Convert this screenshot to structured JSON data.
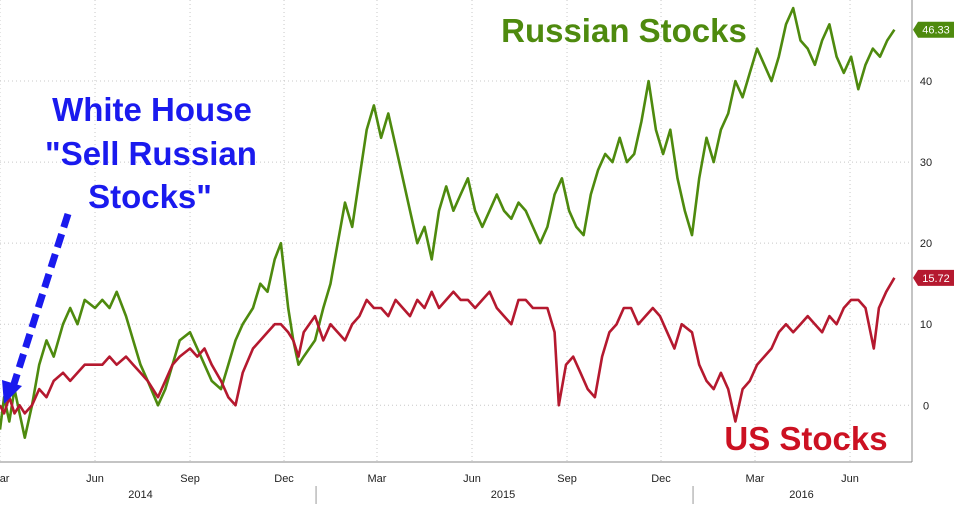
{
  "chart_data": {
    "type": "line",
    "title": "",
    "xlabel": "",
    "ylabel": "",
    "ylim": [
      -7,
      50
    ],
    "x_range": [
      "2014-03-01",
      "2016-07-31"
    ],
    "grid": true,
    "y_ticks": [
      0,
      10,
      20,
      30,
      40
    ],
    "x_ticks": [
      {
        "date": "2014-03-01",
        "label": "Mar"
      },
      {
        "date": "2014-06-01",
        "label": "Jun"
      },
      {
        "date": "2014-09-01",
        "label": "Sep"
      },
      {
        "date": "2014-12-01",
        "label": "Dec"
      },
      {
        "date": "2015-03-01",
        "label": "Mar"
      },
      {
        "date": "2015-06-01",
        "label": "Jun"
      },
      {
        "date": "2015-09-01",
        "label": "Sep"
      },
      {
        "date": "2015-12-01",
        "label": "Dec"
      },
      {
        "date": "2016-03-01",
        "label": "Mar"
      },
      {
        "date": "2016-06-01",
        "label": "Jun"
      }
    ],
    "years": [
      {
        "date": "2014-07-15",
        "label": "2014"
      },
      {
        "date": "2015-07-01",
        "label": "2015"
      },
      {
        "date": "2016-04-15",
        "label": "2016"
      }
    ],
    "year_separators": [
      "2015-01-01",
      "2016-01-01"
    ],
    "series": [
      {
        "name": "Russian Stocks",
        "color": "#4e8a0e",
        "last_value": "46.33",
        "points": [
          [
            "2014-03-01",
            -3
          ],
          [
            "2014-03-05",
            1
          ],
          [
            "2014-03-10",
            -2
          ],
          [
            "2014-03-15",
            2
          ],
          [
            "2014-03-20",
            -1
          ],
          [
            "2014-03-25",
            -4
          ],
          [
            "2014-04-01",
            0
          ],
          [
            "2014-04-08",
            5
          ],
          [
            "2014-04-15",
            8
          ],
          [
            "2014-04-22",
            6
          ],
          [
            "2014-05-01",
            10
          ],
          [
            "2014-05-08",
            12
          ],
          [
            "2014-05-15",
            10
          ],
          [
            "2014-05-22",
            13
          ],
          [
            "2014-06-01",
            12
          ],
          [
            "2014-06-08",
            13
          ],
          [
            "2014-06-15",
            12
          ],
          [
            "2014-06-22",
            14
          ],
          [
            "2014-07-01",
            11
          ],
          [
            "2014-07-08",
            8
          ],
          [
            "2014-07-15",
            5
          ],
          [
            "2014-07-22",
            3
          ],
          [
            "2014-08-01",
            0
          ],
          [
            "2014-08-08",
            2
          ],
          [
            "2014-08-15",
            5
          ],
          [
            "2014-08-22",
            8
          ],
          [
            "2014-09-01",
            9
          ],
          [
            "2014-09-08",
            7
          ],
          [
            "2014-09-15",
            5
          ],
          [
            "2014-09-22",
            3
          ],
          [
            "2014-10-01",
            2
          ],
          [
            "2014-10-08",
            5
          ],
          [
            "2014-10-15",
            8
          ],
          [
            "2014-10-22",
            10
          ],
          [
            "2014-11-01",
            12
          ],
          [
            "2014-11-08",
            15
          ],
          [
            "2014-11-15",
            14
          ],
          [
            "2014-11-22",
            18
          ],
          [
            "2014-11-28",
            20
          ],
          [
            "2014-12-05",
            12
          ],
          [
            "2014-12-10",
            8
          ],
          [
            "2014-12-15",
            5
          ],
          [
            "2014-12-20",
            6
          ],
          [
            "2014-12-31",
            8
          ],
          [
            "2015-01-08",
            12
          ],
          [
            "2015-01-15",
            15
          ],
          [
            "2015-01-22",
            20
          ],
          [
            "2015-01-29",
            25
          ],
          [
            "2015-02-05",
            22
          ],
          [
            "2015-02-12",
            28
          ],
          [
            "2015-02-19",
            34
          ],
          [
            "2015-02-26",
            37
          ],
          [
            "2015-03-05",
            33
          ],
          [
            "2015-03-12",
            36
          ],
          [
            "2015-03-19",
            32
          ],
          [
            "2015-03-26",
            28
          ],
          [
            "2015-04-02",
            24
          ],
          [
            "2015-04-09",
            20
          ],
          [
            "2015-04-16",
            22
          ],
          [
            "2015-04-23",
            18
          ],
          [
            "2015-04-30",
            24
          ],
          [
            "2015-05-07",
            27
          ],
          [
            "2015-05-14",
            24
          ],
          [
            "2015-05-21",
            26
          ],
          [
            "2015-05-28",
            28
          ],
          [
            "2015-06-04",
            24
          ],
          [
            "2015-06-11",
            22
          ],
          [
            "2015-06-18",
            24
          ],
          [
            "2015-06-25",
            26
          ],
          [
            "2015-07-02",
            24
          ],
          [
            "2015-07-09",
            23
          ],
          [
            "2015-07-16",
            25
          ],
          [
            "2015-07-23",
            24
          ],
          [
            "2015-07-30",
            22
          ],
          [
            "2015-08-06",
            20
          ],
          [
            "2015-08-13",
            22
          ],
          [
            "2015-08-20",
            26
          ],
          [
            "2015-08-27",
            28
          ],
          [
            "2015-09-03",
            24
          ],
          [
            "2015-09-10",
            22
          ],
          [
            "2015-09-17",
            21
          ],
          [
            "2015-09-24",
            26
          ],
          [
            "2015-10-01",
            29
          ],
          [
            "2015-10-08",
            31
          ],
          [
            "2015-10-15",
            30
          ],
          [
            "2015-10-22",
            33
          ],
          [
            "2015-10-29",
            30
          ],
          [
            "2015-11-05",
            31
          ],
          [
            "2015-11-12",
            35
          ],
          [
            "2015-11-19",
            40
          ],
          [
            "2015-11-26",
            34
          ],
          [
            "2015-12-03",
            31
          ],
          [
            "2015-12-10",
            34
          ],
          [
            "2015-12-17",
            28
          ],
          [
            "2015-12-24",
            24
          ],
          [
            "2015-12-31",
            21
          ],
          [
            "2016-01-07",
            28
          ],
          [
            "2016-01-14",
            33
          ],
          [
            "2016-01-21",
            30
          ],
          [
            "2016-01-28",
            34
          ],
          [
            "2016-02-04",
            36
          ],
          [
            "2016-02-11",
            40
          ],
          [
            "2016-02-18",
            38
          ],
          [
            "2016-02-25",
            41
          ],
          [
            "2016-03-03",
            44
          ],
          [
            "2016-03-10",
            42
          ],
          [
            "2016-03-17",
            40
          ],
          [
            "2016-03-24",
            43
          ],
          [
            "2016-03-31",
            47
          ],
          [
            "2016-04-07",
            49
          ],
          [
            "2016-04-14",
            45
          ],
          [
            "2016-04-21",
            44
          ],
          [
            "2016-04-28",
            42
          ],
          [
            "2016-05-05",
            45
          ],
          [
            "2016-05-12",
            47
          ],
          [
            "2016-05-19",
            43
          ],
          [
            "2016-05-26",
            41
          ],
          [
            "2016-06-02",
            43
          ],
          [
            "2016-06-09",
            39
          ],
          [
            "2016-06-16",
            42
          ],
          [
            "2016-06-23",
            44
          ],
          [
            "2016-06-30",
            43
          ],
          [
            "2016-07-07",
            45
          ],
          [
            "2016-07-14",
            46.33
          ]
        ]
      },
      {
        "name": "US Stocks",
        "color": "#b5192f",
        "last_value": "15.72",
        "points": [
          [
            "2014-03-01",
            0
          ],
          [
            "2014-03-05",
            -1
          ],
          [
            "2014-03-10",
            1
          ],
          [
            "2014-03-15",
            -1
          ],
          [
            "2014-03-20",
            0
          ],
          [
            "2014-03-25",
            -1
          ],
          [
            "2014-04-01",
            0
          ],
          [
            "2014-04-08",
            2
          ],
          [
            "2014-04-15",
            1
          ],
          [
            "2014-04-22",
            3
          ],
          [
            "2014-05-01",
            4
          ],
          [
            "2014-05-08",
            3
          ],
          [
            "2014-05-15",
            4
          ],
          [
            "2014-05-22",
            5
          ],
          [
            "2014-06-01",
            5
          ],
          [
            "2014-06-08",
            5
          ],
          [
            "2014-06-15",
            6
          ],
          [
            "2014-06-22",
            5
          ],
          [
            "2014-07-01",
            6
          ],
          [
            "2014-07-08",
            5
          ],
          [
            "2014-07-15",
            4
          ],
          [
            "2014-07-22",
            3
          ],
          [
            "2014-08-01",
            1
          ],
          [
            "2014-08-08",
            3
          ],
          [
            "2014-08-15",
            5
          ],
          [
            "2014-08-22",
            6
          ],
          [
            "2014-09-01",
            7
          ],
          [
            "2014-09-08",
            6
          ],
          [
            "2014-09-15",
            7
          ],
          [
            "2014-09-22",
            5
          ],
          [
            "2014-10-01",
            3
          ],
          [
            "2014-10-08",
            1
          ],
          [
            "2014-10-15",
            0
          ],
          [
            "2014-10-22",
            4
          ],
          [
            "2014-11-01",
            7
          ],
          [
            "2014-11-08",
            8
          ],
          [
            "2014-11-15",
            9
          ],
          [
            "2014-11-22",
            10
          ],
          [
            "2014-11-28",
            10
          ],
          [
            "2014-12-05",
            9
          ],
          [
            "2014-12-10",
            8
          ],
          [
            "2014-12-15",
            6
          ],
          [
            "2014-12-20",
            9
          ],
          [
            "2014-12-31",
            11
          ],
          [
            "2015-01-08",
            8
          ],
          [
            "2015-01-15",
            10
          ],
          [
            "2015-01-22",
            9
          ],
          [
            "2015-01-29",
            8
          ],
          [
            "2015-02-05",
            10
          ],
          [
            "2015-02-12",
            11
          ],
          [
            "2015-02-19",
            13
          ],
          [
            "2015-02-26",
            12
          ],
          [
            "2015-03-05",
            12
          ],
          [
            "2015-03-12",
            11
          ],
          [
            "2015-03-19",
            13
          ],
          [
            "2015-03-26",
            12
          ],
          [
            "2015-04-02",
            11
          ],
          [
            "2015-04-09",
            13
          ],
          [
            "2015-04-16",
            12
          ],
          [
            "2015-04-23",
            14
          ],
          [
            "2015-04-30",
            12
          ],
          [
            "2015-05-07",
            13
          ],
          [
            "2015-05-14",
            14
          ],
          [
            "2015-05-21",
            13
          ],
          [
            "2015-05-28",
            13
          ],
          [
            "2015-06-04",
            12
          ],
          [
            "2015-06-11",
            13
          ],
          [
            "2015-06-18",
            14
          ],
          [
            "2015-06-25",
            12
          ],
          [
            "2015-07-02",
            11
          ],
          [
            "2015-07-09",
            10
          ],
          [
            "2015-07-16",
            13
          ],
          [
            "2015-07-23",
            13
          ],
          [
            "2015-07-30",
            12
          ],
          [
            "2015-08-06",
            12
          ],
          [
            "2015-08-13",
            12
          ],
          [
            "2015-08-20",
            9
          ],
          [
            "2015-08-24",
            0
          ],
          [
            "2015-08-31",
            5
          ],
          [
            "2015-09-07",
            6
          ],
          [
            "2015-09-14",
            4
          ],
          [
            "2015-09-21",
            2
          ],
          [
            "2015-09-28",
            1
          ],
          [
            "2015-10-05",
            6
          ],
          [
            "2015-10-12",
            9
          ],
          [
            "2015-10-19",
            10
          ],
          [
            "2015-10-26",
            12
          ],
          [
            "2015-11-02",
            12
          ],
          [
            "2015-11-09",
            10
          ],
          [
            "2015-11-16",
            11
          ],
          [
            "2015-11-23",
            12
          ],
          [
            "2015-11-30",
            11
          ],
          [
            "2015-12-07",
            9
          ],
          [
            "2015-12-14",
            7
          ],
          [
            "2015-12-21",
            10
          ],
          [
            "2015-12-31",
            9
          ],
          [
            "2016-01-07",
            5
          ],
          [
            "2016-01-14",
            3
          ],
          [
            "2016-01-21",
            2
          ],
          [
            "2016-01-28",
            4
          ],
          [
            "2016-02-04",
            2
          ],
          [
            "2016-02-11",
            -2
          ],
          [
            "2016-02-18",
            2
          ],
          [
            "2016-02-25",
            3
          ],
          [
            "2016-03-03",
            5
          ],
          [
            "2016-03-10",
            6
          ],
          [
            "2016-03-17",
            7
          ],
          [
            "2016-03-24",
            9
          ],
          [
            "2016-03-31",
            10
          ],
          [
            "2016-04-07",
            9
          ],
          [
            "2016-04-14",
            10
          ],
          [
            "2016-04-21",
            11
          ],
          [
            "2016-04-28",
            10
          ],
          [
            "2016-05-05",
            9
          ],
          [
            "2016-05-12",
            11
          ],
          [
            "2016-05-19",
            10
          ],
          [
            "2016-05-26",
            12
          ],
          [
            "2016-06-02",
            13
          ],
          [
            "2016-06-09",
            13
          ],
          [
            "2016-06-16",
            12
          ],
          [
            "2016-06-24",
            7
          ],
          [
            "2016-06-29",
            12
          ],
          [
            "2016-07-06",
            14
          ],
          [
            "2016-07-14",
            15.72
          ]
        ]
      }
    ],
    "annotations": {
      "russian_label": "Russian Stocks",
      "us_label": "US Stocks",
      "white_house_lines": [
        "White House",
        "\"Sell Russian",
        "Stocks\""
      ]
    },
    "annotation_colors": {
      "white_house": "#1a1aee",
      "russian": "#4e8a0e",
      "us": "#cc1122"
    }
  }
}
